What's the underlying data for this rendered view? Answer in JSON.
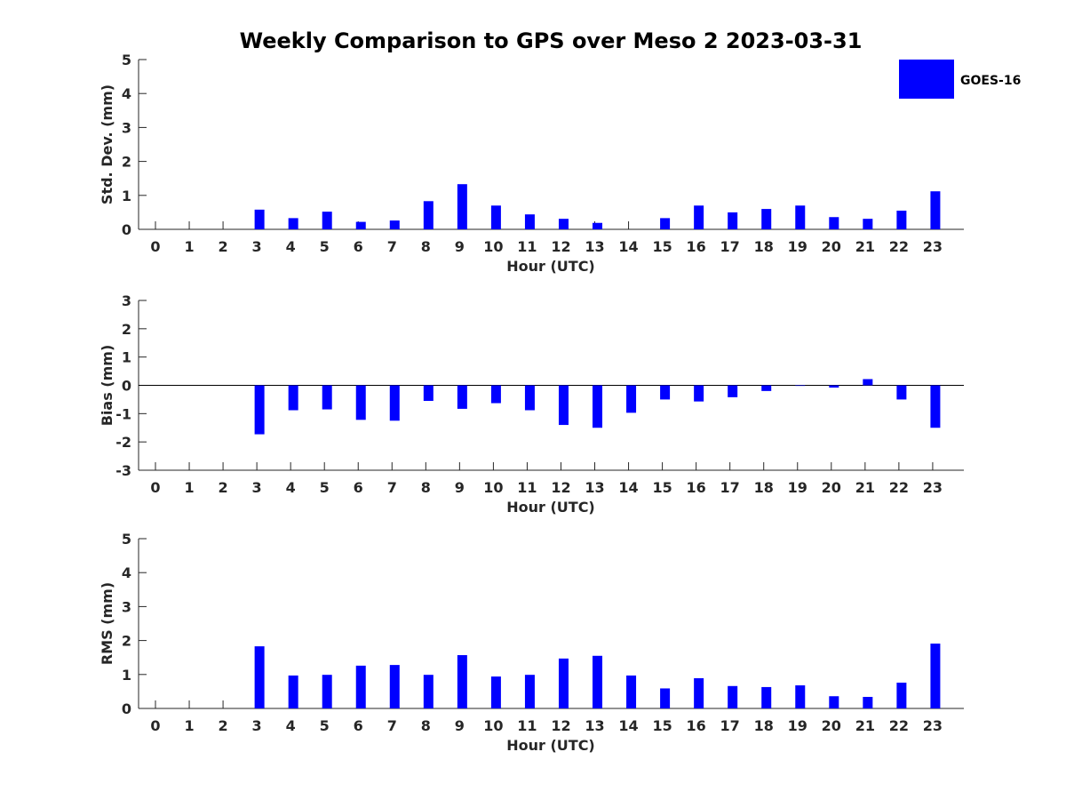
{
  "title": "Weekly Comparison to GPS over Meso 2 2023-03-31",
  "legend": {
    "label": "GOES-16",
    "color": "#0000ff"
  },
  "chart_data": [
    {
      "type": "bar",
      "categories": [
        "0",
        "1",
        "2",
        "3",
        "4",
        "5",
        "6",
        "7",
        "8",
        "9",
        "10",
        "11",
        "12",
        "13",
        "14",
        "15",
        "16",
        "17",
        "18",
        "19",
        "20",
        "21",
        "22",
        "23"
      ],
      "series": [
        {
          "name": "GOES-16",
          "values": [
            0,
            0,
            0,
            0.58,
            0.33,
            0.52,
            0.22,
            0.26,
            0.83,
            1.33,
            0.7,
            0.44,
            0.31,
            0.19,
            0,
            0.33,
            0.7,
            0.5,
            0.6,
            0.7,
            0.36,
            0.31,
            0.55,
            1.12
          ]
        }
      ],
      "xlabel": "Hour (UTC)",
      "ylabel": "Std. Dev. (mm)",
      "ylim": [
        0,
        5
      ],
      "yticks": [
        "0",
        "1",
        "2",
        "3",
        "4",
        "5"
      ],
      "legend_position": "top-right"
    },
    {
      "type": "bar",
      "categories": [
        "0",
        "1",
        "2",
        "3",
        "4",
        "5",
        "6",
        "7",
        "8",
        "9",
        "10",
        "11",
        "12",
        "13",
        "14",
        "15",
        "16",
        "17",
        "18",
        "19",
        "20",
        "21",
        "22",
        "23"
      ],
      "series": [
        {
          "name": "GOES-16",
          "values": [
            0,
            0,
            0,
            -1.73,
            -0.88,
            -0.85,
            -1.22,
            -1.25,
            -0.55,
            -0.83,
            -0.63,
            -0.88,
            -1.4,
            -1.5,
            -0.97,
            -0.5,
            -0.57,
            -0.42,
            -0.2,
            -0.02,
            -0.08,
            0.22,
            -0.5,
            -1.5
          ]
        }
      ],
      "xlabel": "Hour (UTC)",
      "ylabel": "Bias (mm)",
      "ylim": [
        -3,
        3
      ],
      "yticks": [
        "-3",
        "-2",
        "-1",
        "0",
        "1",
        "2",
        "3"
      ]
    },
    {
      "type": "bar",
      "categories": [
        "0",
        "1",
        "2",
        "3",
        "4",
        "5",
        "6",
        "7",
        "8",
        "9",
        "10",
        "11",
        "12",
        "13",
        "14",
        "15",
        "16",
        "17",
        "18",
        "19",
        "20",
        "21",
        "22",
        "23"
      ],
      "series": [
        {
          "name": "GOES-16",
          "values": [
            0,
            0,
            0,
            1.83,
            0.97,
            0.99,
            1.26,
            1.28,
            0.99,
            1.57,
            0.94,
            0.99,
            1.47,
            1.55,
            0.97,
            0.59,
            0.89,
            0.66,
            0.63,
            0.68,
            0.36,
            0.34,
            0.76,
            1.91
          ]
        }
      ],
      "xlabel": "Hour (UTC)",
      "ylabel": "RMS (mm)",
      "ylim": [
        0,
        5
      ],
      "yticks": [
        "0",
        "1",
        "2",
        "3",
        "4",
        "5"
      ]
    }
  ]
}
